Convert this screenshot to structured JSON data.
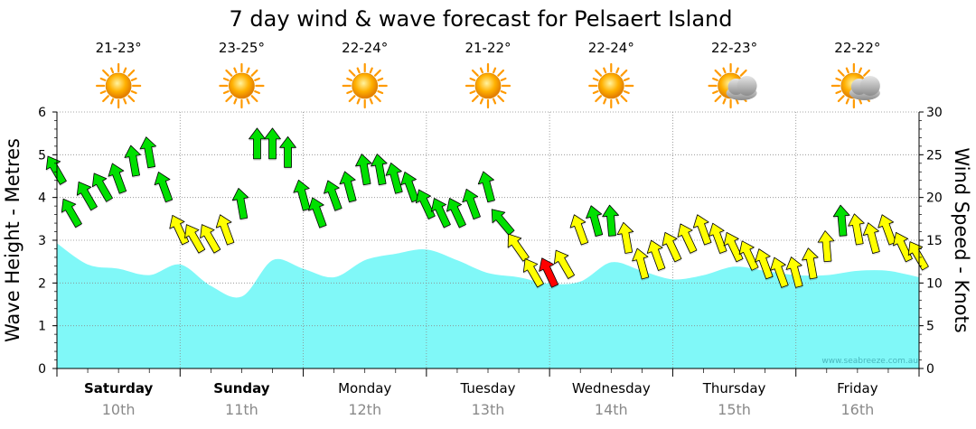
{
  "chart_data": {
    "type": "area",
    "title": "7 day wind & wave forecast for Pelsaert Island",
    "ylabel_left": "Wave Height - Metres",
    "ylabel_right": "Wind Speed - Knots",
    "ylim_left": [
      0,
      6
    ],
    "ylim_right": [
      0,
      30
    ],
    "left_ticks": [
      "0",
      "1",
      "2",
      "3",
      "4",
      "5",
      "6"
    ],
    "right_ticks": [
      "0",
      "5",
      "10",
      "15",
      "20",
      "25",
      "30"
    ],
    "watermark": "www.seabreeze.com.au",
    "days": [
      {
        "name": "Saturday",
        "date": "10th",
        "temp": "21-23°",
        "icon": "sun-icon",
        "bold": true
      },
      {
        "name": "Sunday",
        "date": "11th",
        "temp": "23-25°",
        "icon": "sun-icon",
        "bold": true
      },
      {
        "name": "Monday",
        "date": "12th",
        "temp": "22-24°",
        "icon": "sun-icon",
        "bold": false
      },
      {
        "name": "Tuesday",
        "date": "13th",
        "temp": "21-22°",
        "icon": "sun-icon",
        "bold": false
      },
      {
        "name": "Wednesday",
        "date": "14th",
        "temp": "22-24°",
        "icon": "sun-icon",
        "bold": false
      },
      {
        "name": "Thursday",
        "date": "15th",
        "temp": "22-23°",
        "icon": "partly-cloudy-icon",
        "bold": false
      },
      {
        "name": "Friday",
        "date": "16th",
        "temp": "22-22°",
        "icon": "partly-cloudy-icon",
        "bold": false
      }
    ],
    "wave_height_m": {
      "x_days": [
        0,
        0.25,
        0.5,
        0.75,
        1.0,
        1.25,
        1.5,
        1.75,
        2.0,
        2.25,
        2.5,
        2.75,
        3.0,
        3.25,
        3.5,
        3.75,
        4.0,
        4.25,
        4.5,
        4.75,
        5.0,
        5.25,
        5.5,
        5.75,
        6.0,
        6.25,
        6.5,
        6.75,
        7.0
      ],
      "values": [
        2.95,
        2.45,
        2.35,
        2.2,
        2.45,
        1.95,
        1.7,
        2.55,
        2.35,
        2.15,
        2.55,
        2.7,
        2.8,
        2.55,
        2.25,
        2.15,
        2.0,
        2.05,
        2.5,
        2.3,
        2.1,
        2.2,
        2.4,
        2.3,
        2.2,
        2.2,
        2.3,
        2.3,
        2.15
      ]
    },
    "wind": {
      "x_days": [
        0,
        0.125,
        0.25,
        0.375,
        0.5,
        0.625,
        0.75,
        0.875,
        1.0,
        1.125,
        1.25,
        1.375,
        1.5,
        1.625,
        1.75,
        1.875,
        2.0,
        2.125,
        2.25,
        2.375,
        2.5,
        2.625,
        2.75,
        2.875,
        3.0,
        3.125,
        3.25,
        3.375,
        3.5,
        3.625,
        3.75,
        3.875,
        4.0,
        4.125,
        4.25,
        4.375,
        4.5,
        4.625,
        4.75,
        4.875,
        5.0,
        5.125,
        5.25,
        5.375,
        5.5,
        5.625,
        5.75,
        5.875,
        6.0,
        6.125,
        6.25,
        6.375,
        6.5,
        6.625,
        6.75,
        6.875,
        7.0
      ],
      "speed_kt": [
        23,
        18,
        20,
        21,
        22,
        24,
        25,
        21,
        16,
        15,
        15,
        16,
        19,
        26,
        26,
        25,
        20,
        18,
        20,
        21,
        23,
        23,
        22,
        21,
        19,
        18,
        18,
        19,
        21,
        17,
        14,
        11,
        11,
        12,
        16,
        17,
        17,
        15,
        12,
        13,
        14,
        15,
        16,
        15,
        14,
        13,
        12,
        11,
        11,
        12,
        14,
        17,
        16,
        15,
        16,
        14,
        13
      ],
      "direction_deg": [
        150,
        150,
        150,
        150,
        160,
        170,
        170,
        160,
        155,
        150,
        150,
        160,
        170,
        180,
        180,
        180,
        165,
        160,
        160,
        165,
        170,
        170,
        165,
        160,
        155,
        155,
        155,
        160,
        165,
        140,
        145,
        150,
        155,
        150,
        160,
        165,
        175,
        170,
        165,
        160,
        155,
        155,
        160,
        160,
        155,
        155,
        160,
        160,
        165,
        170,
        175,
        175,
        170,
        165,
        160,
        155,
        150
      ]
    },
    "wind_colour_bands": [
      {
        "max_kt": 10,
        "colour": "#ffff00",
        "label": "light"
      },
      {
        "max_kt": 12,
        "colour": "#ff0000",
        "label": "strong-red"
      },
      {
        "max_kt": 999,
        "colour": "#00ee00",
        "label": "green"
      }
    ],
    "colours": {
      "wave_fill": "#80f8f8",
      "wave_line": "#ffffff",
      "grid": "#8a8a8a",
      "arrow_green": "#00e000",
      "arrow_yellow": "#ffff00",
      "arrow_red": "#ff0000"
    }
  }
}
